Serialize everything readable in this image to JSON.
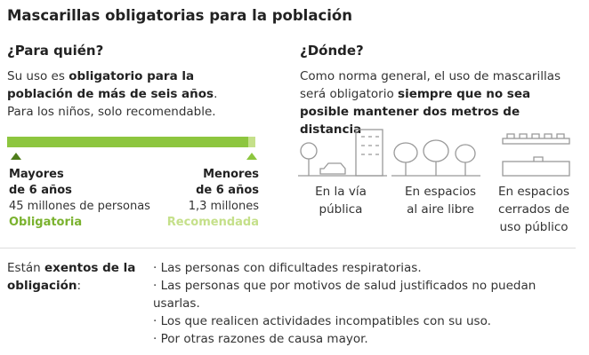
{
  "title": "Mascarillas obligatorias para la población",
  "who": {
    "heading": "¿Para quién?",
    "text": [
      "Su uso es ",
      "obligatorio para la población de más de seis años",
      ". Para los niños, solo recomendable."
    ],
    "groups": [
      {
        "label": [
          "Mayores",
          "de 6 años"
        ],
        "count": "45 millones de personas",
        "status": "Obligatoria"
      },
      {
        "label": [
          "Menores",
          "de 6 años"
        ],
        "count": "1,3 millones",
        "status": "Recomendada"
      }
    ]
  },
  "where": {
    "heading": "¿Dónde?",
    "text": [
      "Como norma general, el uso de mascarillas será obligatorio ",
      "siempre que no sea posible mantener dos metros de distancia"
    ],
    "places": [
      [
        "En la vía",
        "pública"
      ],
      [
        "En espacios",
        "al aire libre"
      ],
      [
        "En espacios",
        "cerrados de",
        "uso público"
      ]
    ]
  },
  "exemptions": {
    "intro": [
      "Están ",
      "exentos de la",
      "obligación",
      ":"
    ],
    "items": [
      "· Las personas con dificultades respiratorias.",
      "· Las personas que por motivos de salud justificados no puedan usarlas.",
      "· Los que realicen actividades incompatibles con su uso.",
      "· Por otras razones de causa mayor."
    ]
  }
}
